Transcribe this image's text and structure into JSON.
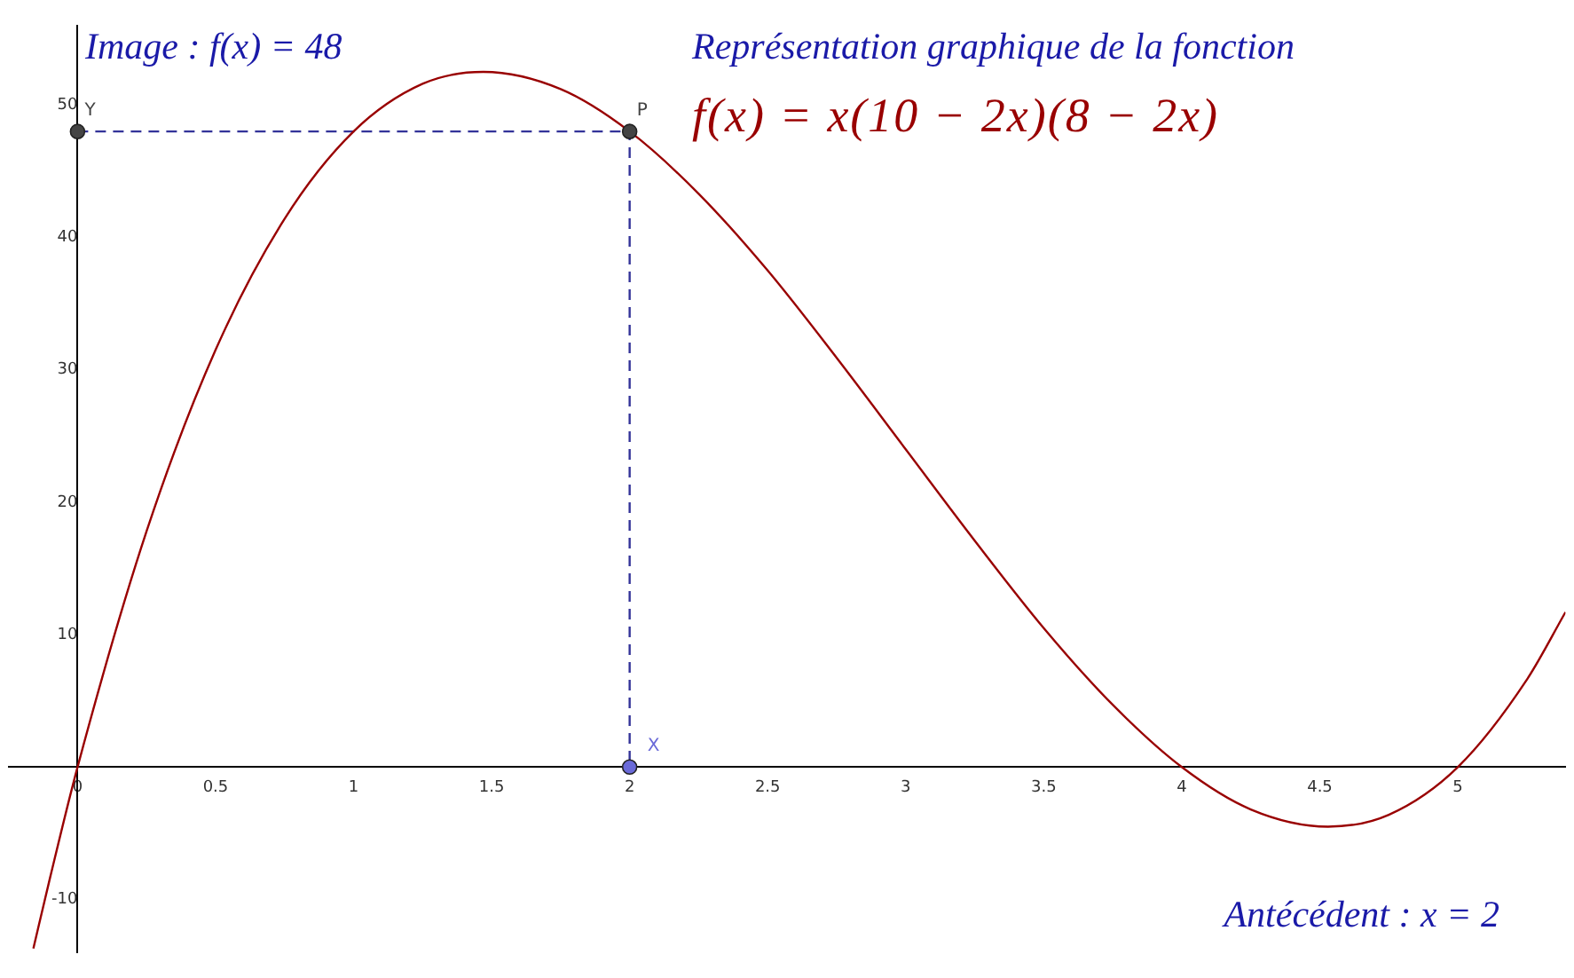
{
  "chart_data": {
    "type": "line",
    "title": "Représentation graphique de la fonction",
    "subtitle": "f(x) = x(10 − 2x)(8 − 2x)",
    "xlim": [
      -0.25,
      5.39
    ],
    "ylim": [
      -14,
      56
    ],
    "xticks": [
      0,
      0.5,
      1,
      1.5,
      2,
      2.5,
      3,
      3.5,
      4,
      4.5,
      5
    ],
    "yticks": [
      -10,
      10,
      20,
      30,
      40,
      50
    ],
    "grid": false,
    "legend": false,
    "series": [
      {
        "type": "line",
        "color": "#990000",
        "x": [
          -0.16,
          -0.1,
          0,
          0.25,
          0.5,
          0.75,
          1,
          1.25,
          1.47,
          1.75,
          2,
          2.25,
          2.5,
          2.75,
          3,
          3.25,
          3.5,
          3.75,
          4,
          4.25,
          4.53,
          4.75,
          5,
          5.25,
          5.39
        ],
        "values": [
          -13.7,
          -8.4,
          0,
          17.8,
          31.5,
          41.4,
          48,
          51.6,
          52.5,
          51.2,
          48,
          43.3,
          37.5,
          30.9,
          24,
          17.1,
          10.5,
          4.7,
          0,
          -3.2,
          -4.5,
          -3.6,
          0,
          6.6,
          11.7
        ]
      },
      {
        "type": "line",
        "color": "#333399",
        "line_style": "dashed",
        "x": [
          0,
          2,
          2
        ],
        "values": [
          48,
          48,
          0
        ]
      },
      {
        "type": "scatter",
        "name": "Y",
        "color": "#444444",
        "marker": "circle",
        "x": [
          0
        ],
        "values": [
          48
        ]
      },
      {
        "type": "scatter",
        "name": "P",
        "color": "#444444",
        "marker": "circle",
        "x": [
          2
        ],
        "values": [
          48
        ]
      },
      {
        "type": "scatter",
        "name": "X",
        "color": "#6a6ad8",
        "marker": "circle",
        "x": [
          2
        ],
        "values": [
          0
        ]
      }
    ],
    "annotations": [
      "Image : f(x) = 48",
      "Antécédent : x = 2"
    ]
  }
}
